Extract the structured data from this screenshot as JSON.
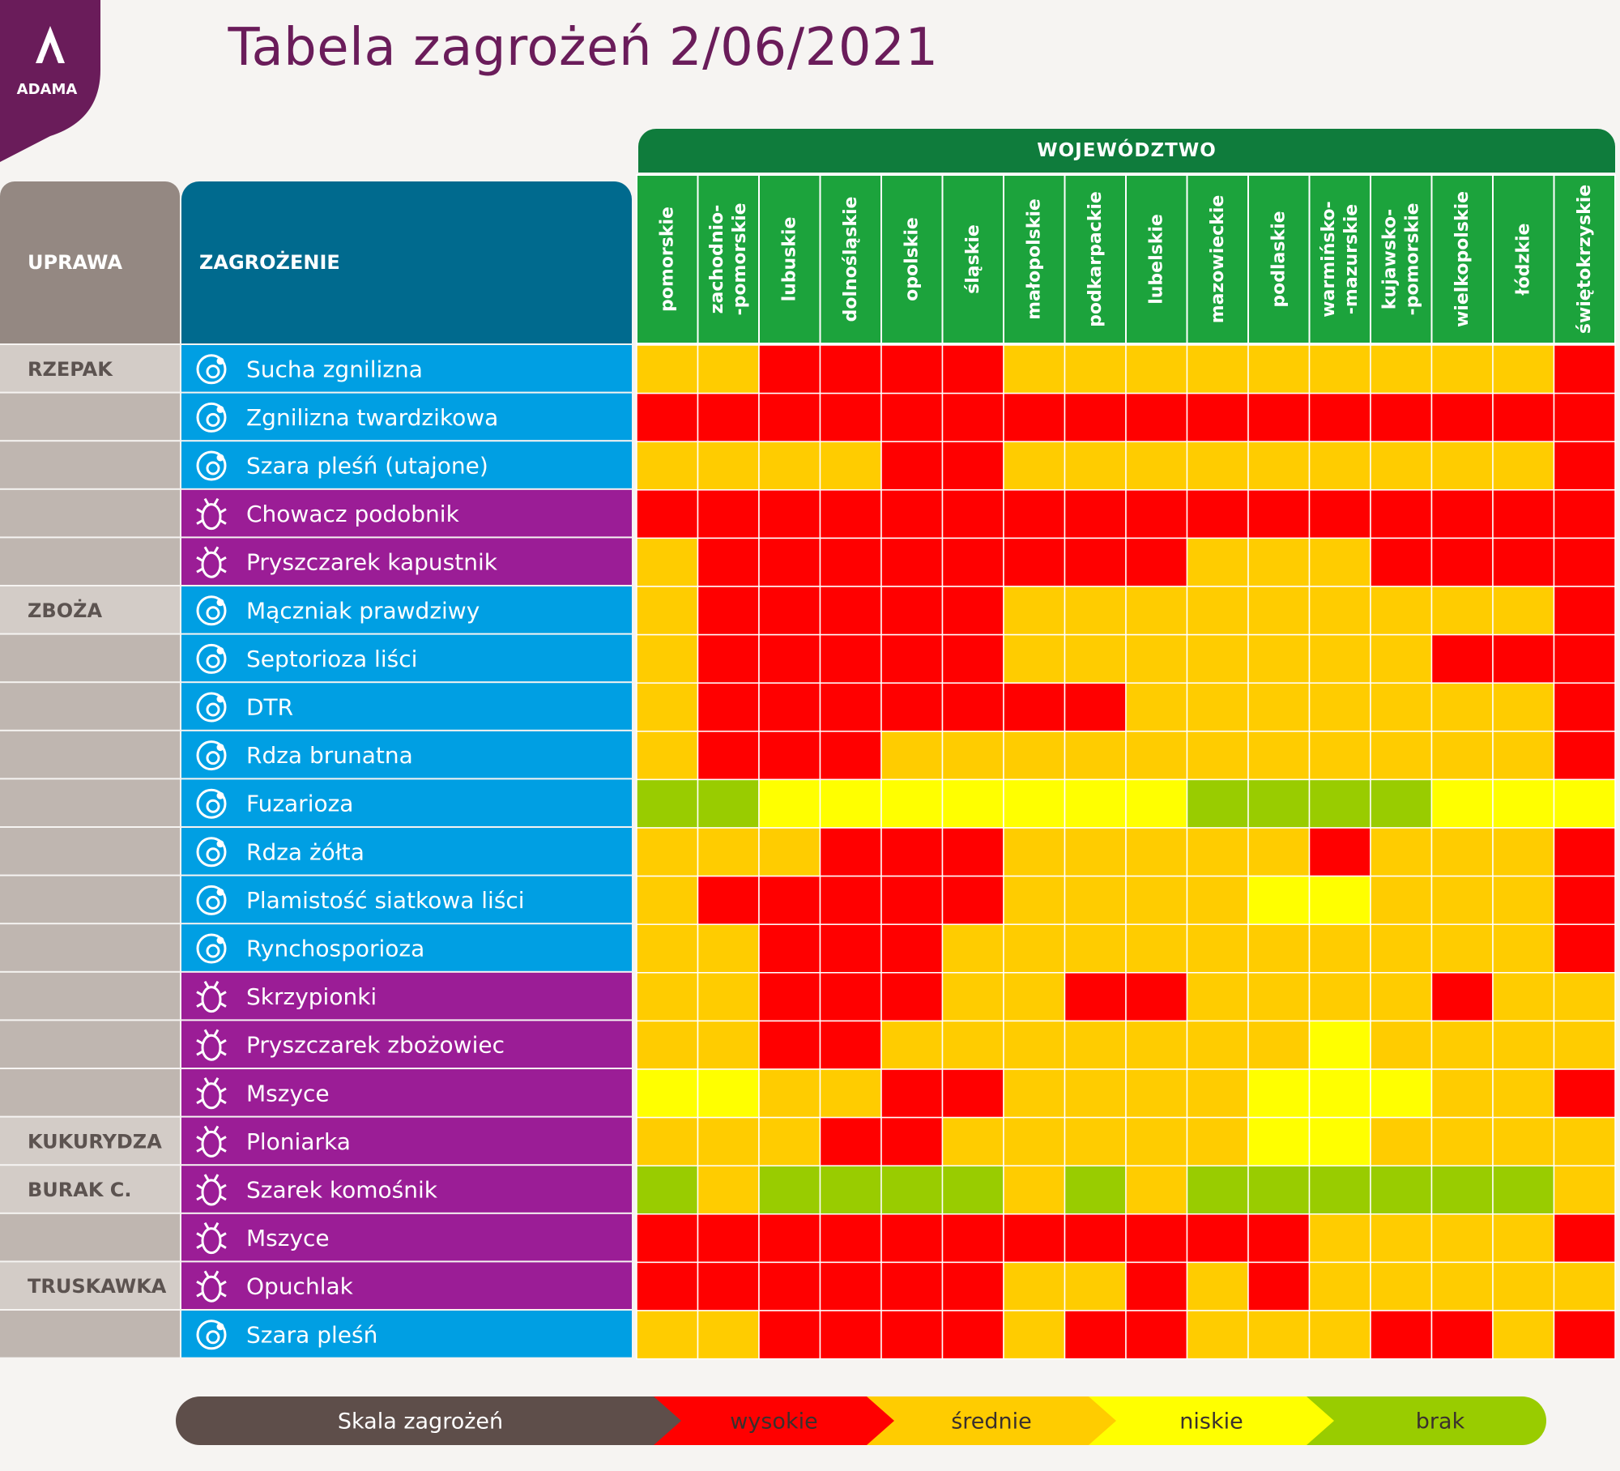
{
  "logo": {
    "text": "ADAMA",
    "color": "#6a1c5a"
  },
  "title": "Tabela zagrożeń 2/06/2021",
  "headers": {
    "wojewodztwo": "WOJEWÓDZTWO",
    "uprawa": "UPRAWA",
    "zagrozenie": "ZAGROŻENIE"
  },
  "colors": {
    "W": "#ff0000",
    "S": "#ffcc00",
    "N": "#ffff00",
    "B": "#99cc00",
    "fungus_bg": "#009fe3",
    "pest_bg": "#9b1d96",
    "crop_bg": "#d3ccc7",
    "crop_bg_alt": "#bfb6b0",
    "region_bg": "#1ca33c"
  },
  "chart_data": {
    "type": "heatmap",
    "title": "Tabela zagrożeń 2/06/2021",
    "x_axis_title": "WOJEWÓDZTWO",
    "regions": [
      [
        "pomorskie"
      ],
      [
        "zachodnio-",
        "-pomorskie"
      ],
      [
        "lubuskie"
      ],
      [
        "dolnośląskie"
      ],
      [
        "opolskie"
      ],
      [
        "śląskie"
      ],
      [
        "małopolskie"
      ],
      [
        "podkarpackie"
      ],
      [
        "lubelskie"
      ],
      [
        "mazowieckie"
      ],
      [
        "podlaskie"
      ],
      [
        "warmińsko-",
        "-mazurskie"
      ],
      [
        "kujawsko-",
        "-pomorskie"
      ],
      [
        "wielkopolskie"
      ],
      [
        "łódzkie"
      ],
      [
        "świętokrzyskie"
      ]
    ],
    "scale": {
      "W": "wysokie",
      "S": "średnie",
      "N": "niskie",
      "B": "brak"
    },
    "rows": [
      {
        "crop": "RZEPAK",
        "threat": "Sucha zgnilizna",
        "kind": "fungus",
        "levels": [
          "S",
          "S",
          "W",
          "W",
          "W",
          "W",
          "S",
          "S",
          "S",
          "S",
          "S",
          "S",
          "S",
          "S",
          "S",
          "W"
        ]
      },
      {
        "crop": "",
        "threat": "Zgnilizna twardzikowa",
        "kind": "fungus",
        "levels": [
          "W",
          "W",
          "W",
          "W",
          "W",
          "W",
          "W",
          "W",
          "W",
          "W",
          "W",
          "W",
          "W",
          "W",
          "W",
          "W"
        ]
      },
      {
        "crop": "",
        "threat": "Szara pleśń (utajone)",
        "kind": "fungus",
        "levels": [
          "S",
          "S",
          "S",
          "S",
          "W",
          "W",
          "S",
          "S",
          "S",
          "S",
          "S",
          "S",
          "S",
          "S",
          "S",
          "W"
        ]
      },
      {
        "crop": "",
        "threat": "Chowacz podobnik",
        "kind": "pest",
        "levels": [
          "W",
          "W",
          "W",
          "W",
          "W",
          "W",
          "W",
          "W",
          "W",
          "W",
          "W",
          "W",
          "W",
          "W",
          "W",
          "W"
        ]
      },
      {
        "crop": "",
        "threat": "Pryszczarek kapustnik",
        "kind": "pest",
        "levels": [
          "S",
          "W",
          "W",
          "W",
          "W",
          "W",
          "W",
          "W",
          "W",
          "S",
          "S",
          "S",
          "W",
          "W",
          "W",
          "W"
        ]
      },
      {
        "crop": "ZBOŻA",
        "threat": "Mączniak prawdziwy",
        "kind": "fungus",
        "levels": [
          "S",
          "W",
          "W",
          "W",
          "W",
          "W",
          "S",
          "S",
          "S",
          "S",
          "S",
          "S",
          "S",
          "S",
          "S",
          "W"
        ]
      },
      {
        "crop": "",
        "threat": "Septorioza liści",
        "kind": "fungus",
        "levels": [
          "S",
          "W",
          "W",
          "W",
          "W",
          "W",
          "S",
          "S",
          "S",
          "S",
          "S",
          "S",
          "S",
          "W",
          "W",
          "W"
        ]
      },
      {
        "crop": "",
        "threat": "DTR",
        "kind": "fungus",
        "levels": [
          "S",
          "W",
          "W",
          "W",
          "W",
          "W",
          "W",
          "W",
          "S",
          "S",
          "S",
          "S",
          "S",
          "S",
          "S",
          "W"
        ]
      },
      {
        "crop": "",
        "threat": "Rdza brunatna",
        "kind": "fungus",
        "levels": [
          "S",
          "W",
          "W",
          "W",
          "S",
          "S",
          "S",
          "S",
          "S",
          "S",
          "S",
          "S",
          "S",
          "S",
          "S",
          "W"
        ]
      },
      {
        "crop": "",
        "threat": "Fuzarioza",
        "kind": "fungus",
        "levels": [
          "B",
          "B",
          "N",
          "N",
          "N",
          "N",
          "N",
          "N",
          "N",
          "B",
          "B",
          "B",
          "B",
          "N",
          "N",
          "N"
        ]
      },
      {
        "crop": "",
        "threat": "Rdza żółta",
        "kind": "fungus",
        "levels": [
          "S",
          "S",
          "S",
          "W",
          "W",
          "W",
          "S",
          "S",
          "S",
          "S",
          "S",
          "W",
          "S",
          "S",
          "S",
          "W"
        ]
      },
      {
        "crop": "",
        "threat": "Plamistość siatkowa liści",
        "kind": "fungus",
        "levels": [
          "S",
          "W",
          "W",
          "W",
          "W",
          "W",
          "S",
          "S",
          "S",
          "S",
          "N",
          "N",
          "S",
          "S",
          "S",
          "W"
        ]
      },
      {
        "crop": "",
        "threat": "Rynchosporioza",
        "kind": "fungus",
        "levels": [
          "S",
          "S",
          "W",
          "W",
          "W",
          "S",
          "S",
          "S",
          "S",
          "S",
          "S",
          "S",
          "S",
          "S",
          "S",
          "W"
        ]
      },
      {
        "crop": "",
        "threat": "Skrzypionki",
        "kind": "pest",
        "levels": [
          "S",
          "S",
          "W",
          "W",
          "W",
          "S",
          "S",
          "W",
          "W",
          "S",
          "S",
          "S",
          "S",
          "W",
          "S",
          "S"
        ]
      },
      {
        "crop": "",
        "threat": "Pryszczarek zbożowiec",
        "kind": "pest",
        "levels": [
          "S",
          "S",
          "W",
          "W",
          "S",
          "S",
          "S",
          "S",
          "S",
          "S",
          "S",
          "N",
          "S",
          "S",
          "S",
          "S"
        ]
      },
      {
        "crop": "",
        "threat": "Mszyce",
        "kind": "pest",
        "levels": [
          "N",
          "N",
          "S",
          "S",
          "W",
          "W",
          "S",
          "S",
          "S",
          "S",
          "N",
          "N",
          "N",
          "S",
          "S",
          "W"
        ]
      },
      {
        "crop": "KUKURYDZA",
        "threat": "Ploniarka",
        "kind": "pest",
        "levels": [
          "S",
          "S",
          "S",
          "W",
          "W",
          "S",
          "S",
          "S",
          "S",
          "S",
          "N",
          "N",
          "S",
          "S",
          "S",
          "S"
        ]
      },
      {
        "crop": "BURAK C.",
        "threat": "Szarek komośnik",
        "kind": "pest",
        "levels": [
          "B",
          "S",
          "B",
          "B",
          "B",
          "B",
          "S",
          "B",
          "S",
          "B",
          "B",
          "B",
          "B",
          "B",
          "B",
          "S"
        ]
      },
      {
        "crop": "",
        "threat": "Mszyce",
        "kind": "pest",
        "levels": [
          "W",
          "W",
          "W",
          "W",
          "W",
          "W",
          "W",
          "W",
          "W",
          "W",
          "W",
          "S",
          "S",
          "S",
          "S",
          "W"
        ]
      },
      {
        "crop": "TRUSKAWKA",
        "threat": "Opuchlak",
        "kind": "pest",
        "levels": [
          "W",
          "W",
          "W",
          "W",
          "W",
          "W",
          "S",
          "S",
          "W",
          "S",
          "W",
          "S",
          "S",
          "S",
          "S",
          "S"
        ]
      },
      {
        "crop": "",
        "threat": "Szara pleśń",
        "kind": "fungus",
        "levels": [
          "S",
          "S",
          "W",
          "W",
          "W",
          "W",
          "S",
          "W",
          "W",
          "S",
          "S",
          "S",
          "W",
          "W",
          "S",
          "W"
        ]
      }
    ]
  },
  "legend": {
    "label": "Skala zagrożeń",
    "items": [
      {
        "key": "W",
        "label": "wysokie"
      },
      {
        "key": "S",
        "label": "średnie"
      },
      {
        "key": "N",
        "label": "niskie"
      },
      {
        "key": "B",
        "label": "brak"
      }
    ]
  }
}
